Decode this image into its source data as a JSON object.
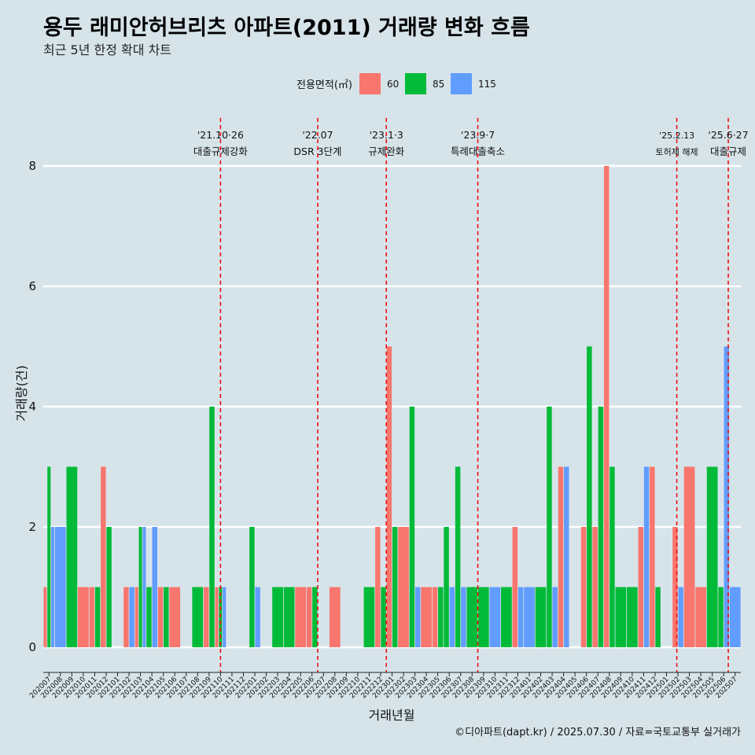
{
  "chart_data": {
    "type": "bar",
    "title": "용두 래미안허브리츠 아파트(2011) 거래량 변화 흐름",
    "subtitle": "최근 5년 한정 확대 차트",
    "xlabel": "거래년월",
    "ylabel": "거래량(건)",
    "ylim": [
      0,
      8
    ],
    "yticks": [
      0,
      2,
      4,
      6,
      8
    ],
    "grid": "horizontal",
    "legend": {
      "title": "전용면적(㎡)",
      "placement": "top",
      "entries": [
        "60",
        "85",
        "115"
      ]
    },
    "caption": "©디아파트(dapt.kr) / 2025.07.30 / 자료=국토교통부 실거래가",
    "series_colors": {
      "60": "#f8766d",
      "85": "#00ba38",
      "115": "#619cff"
    },
    "categories": [
      "202007",
      "202008",
      "202009",
      "202010",
      "202011",
      "202012",
      "202101",
      "202102",
      "202103",
      "202104",
      "202105",
      "202106",
      "202107",
      "202108",
      "202109",
      "202110",
      "202111",
      "202112",
      "202201",
      "202202",
      "202203",
      "202204",
      "202205",
      "202206",
      "202207",
      "202208",
      "202209",
      "202210",
      "202211",
      "202212",
      "202301",
      "202302",
      "202303",
      "202304",
      "202305",
      "202306",
      "202307",
      "202308",
      "202309",
      "202310",
      "202311",
      "202312",
      "202401",
      "202402",
      "202403",
      "202404",
      "202405",
      "202406",
      "202407",
      "202408",
      "202409",
      "202410",
      "202411",
      "202412",
      "202501",
      "202502",
      "202503",
      "202504",
      "202505",
      "202506",
      "202507"
    ],
    "bars": [
      {
        "month": "202007",
        "counts": {
          "60": 1,
          "85": 3,
          "115": 2
        }
      },
      {
        "month": "202008",
        "counts": {
          "115": 2
        }
      },
      {
        "month": "202009",
        "counts": {
          "85": 3
        }
      },
      {
        "month": "202010",
        "counts": {
          "60": 1
        }
      },
      {
        "month": "202011",
        "counts": {
          "60": 1,
          "85": 1
        }
      },
      {
        "month": "202012",
        "counts": {
          "60": 3,
          "85": 2
        }
      },
      {
        "month": "202101",
        "counts": {}
      },
      {
        "month": "202102",
        "counts": {
          "60": 1,
          "115": 1
        }
      },
      {
        "month": "202103",
        "counts": {
          "60": 1,
          "85": 2,
          "115": 2
        }
      },
      {
        "month": "202104",
        "counts": {
          "85": 1,
          "115": 2
        }
      },
      {
        "month": "202105",
        "counts": {
          "60": 1,
          "85": 1
        }
      },
      {
        "month": "202106",
        "counts": {
          "60": 1
        }
      },
      {
        "month": "202107",
        "counts": {}
      },
      {
        "month": "202108",
        "counts": {
          "85": 1
        }
      },
      {
        "month": "202109",
        "counts": {
          "60": 1,
          "85": 4
        }
      },
      {
        "month": "202110",
        "counts": {
          "60": 1,
          "85": 1,
          "115": 1
        }
      },
      {
        "month": "202111",
        "counts": {}
      },
      {
        "month": "202112",
        "counts": {}
      },
      {
        "month": "202201",
        "counts": {
          "85": 2,
          "115": 1
        }
      },
      {
        "month": "202202",
        "counts": {}
      },
      {
        "month": "202203",
        "counts": {
          "85": 1
        }
      },
      {
        "month": "202204",
        "counts": {
          "85": 1
        }
      },
      {
        "month": "202205",
        "counts": {
          "60": 1
        }
      },
      {
        "month": "202206",
        "counts": {
          "60": 1,
          "85": 1
        }
      },
      {
        "month": "202207",
        "counts": {}
      },
      {
        "month": "202208",
        "counts": {
          "60": 1
        }
      },
      {
        "month": "202209",
        "counts": {}
      },
      {
        "month": "202210",
        "counts": {}
      },
      {
        "month": "202211",
        "counts": {
          "85": 1
        }
      },
      {
        "month": "202212",
        "counts": {
          "60": 2,
          "85": 1
        }
      },
      {
        "month": "202301",
        "counts": {
          "60": 5,
          "85": 2
        }
      },
      {
        "month": "202302",
        "counts": {
          "60": 2
        }
      },
      {
        "month": "202303",
        "counts": {
          "85": 4,
          "115": 1
        }
      },
      {
        "month": "202304",
        "counts": {
          "60": 1
        }
      },
      {
        "month": "202305",
        "counts": {
          "60": 1,
          "85": 1
        }
      },
      {
        "month": "202306",
        "counts": {
          "85": 2,
          "115": 1
        }
      },
      {
        "month": "202307",
        "counts": {
          "85": 3,
          "115": 1
        }
      },
      {
        "month": "202308",
        "counts": {
          "85": 1
        }
      },
      {
        "month": "202309",
        "counts": {
          "85": 1
        }
      },
      {
        "month": "202310",
        "counts": {
          "115": 1
        }
      },
      {
        "month": "202311",
        "counts": {
          "85": 1
        }
      },
      {
        "month": "202312",
        "counts": {
          "60": 2,
          "115": 1
        }
      },
      {
        "month": "202401",
        "counts": {
          "115": 1
        }
      },
      {
        "month": "202402",
        "counts": {
          "85": 1
        }
      },
      {
        "month": "202403",
        "counts": {
          "85": 4,
          "115": 1
        }
      },
      {
        "month": "202404",
        "counts": {
          "60": 3,
          "115": 3
        }
      },
      {
        "month": "202405",
        "counts": {}
      },
      {
        "month": "202406",
        "counts": {
          "60": 2,
          "85": 5
        }
      },
      {
        "month": "202407",
        "counts": {
          "60": 2,
          "85": 4
        }
      },
      {
        "month": "202408",
        "counts": {
          "60": 8,
          "85": 3
        }
      },
      {
        "month": "202409",
        "counts": {
          "85": 1
        }
      },
      {
        "month": "202410",
        "counts": {
          "85": 1
        }
      },
      {
        "month": "202411",
        "counts": {
          "60": 2,
          "115": 3
        }
      },
      {
        "month": "202412",
        "counts": {
          "60": 3,
          "85": 1
        }
      },
      {
        "month": "202501",
        "counts": {}
      },
      {
        "month": "202502",
        "counts": {
          "60": 2,
          "115": 1
        }
      },
      {
        "month": "202503",
        "counts": {
          "60": 3
        }
      },
      {
        "month": "202504",
        "counts": {
          "60": 1
        }
      },
      {
        "month": "202505",
        "counts": {
          "85": 3
        }
      },
      {
        "month": "202506",
        "counts": {
          "85": 1,
          "115": 5
        }
      },
      {
        "month": "202507",
        "counts": {
          "115": 1
        }
      }
    ],
    "events": [
      {
        "month": "202110",
        "offset": 0.0,
        "date": "'21.10·26",
        "label": "대출규제강화",
        "small": false
      },
      {
        "month": "202207",
        "offset": -0.5,
        "date": "'22.07",
        "label": "DSR 3단계",
        "small": false
      },
      {
        "month": "202301",
        "offset": -0.5,
        "date": "'23.1·3",
        "label": "규제완화",
        "small": false
      },
      {
        "month": "202309",
        "offset": -0.5,
        "date": "'23.9·7",
        "label": "특례대출축소",
        "small": false
      },
      {
        "month": "202502",
        "offset": -0.1,
        "date": "'25.2.13",
        "label": "토허제 해제",
        "small": true
      },
      {
        "month": "202506",
        "offset": 0.4,
        "date": "'25.6·27",
        "label": "대출규제",
        "small": false
      }
    ]
  }
}
